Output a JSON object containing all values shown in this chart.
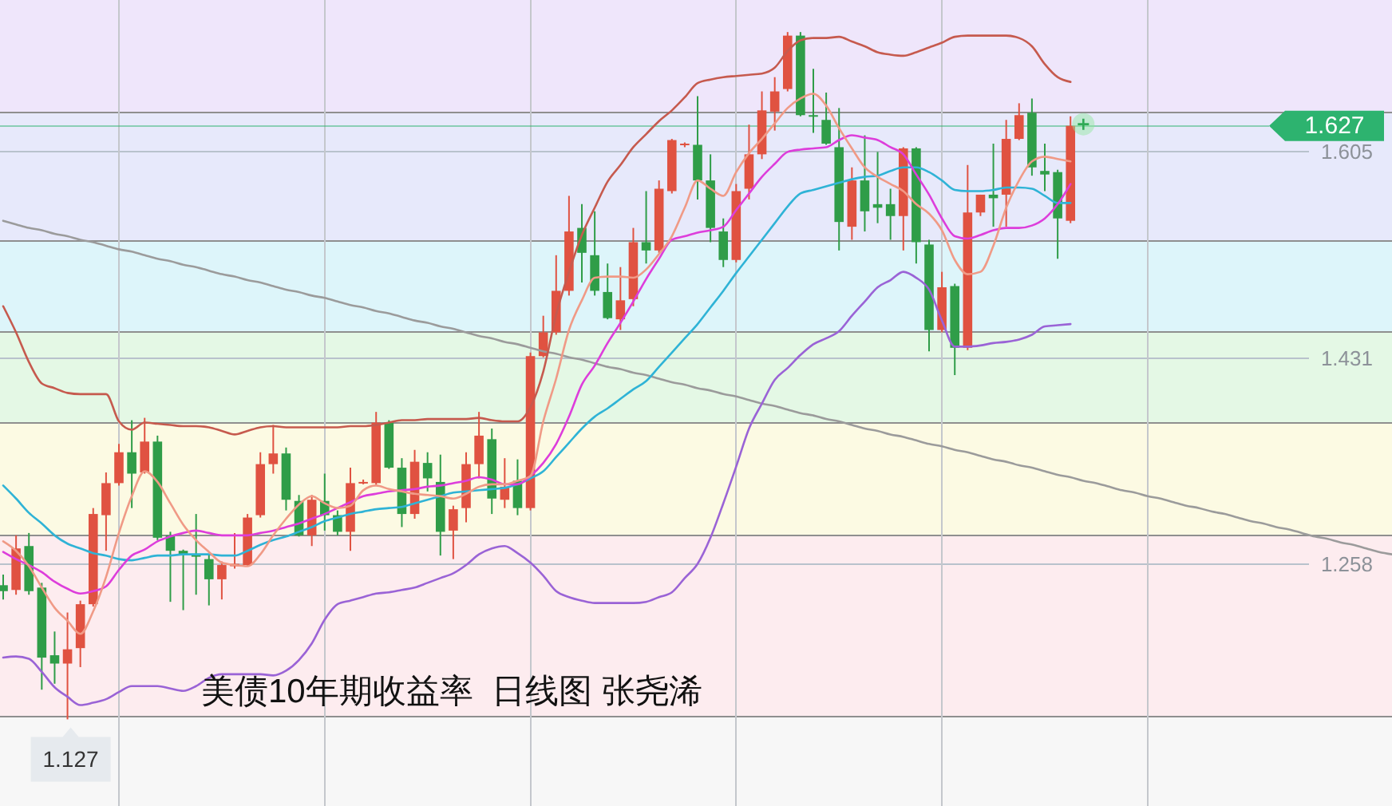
{
  "chart_data": {
    "type": "candlestick",
    "title": "美债10年期收益率  日线图 张尧浠",
    "categories": [
      null,
      null,
      null,
      null,
      null,
      null,
      null,
      null,
      null,
      null,
      null,
      null,
      null,
      null,
      null,
      null,
      null,
      null,
      null,
      null,
      null,
      null,
      null,
      null,
      null,
      null,
      null,
      null,
      null,
      null,
      null,
      null,
      null,
      null,
      null,
      null,
      null,
      null,
      null,
      null,
      null,
      null,
      null,
      null,
      null,
      null,
      null,
      null,
      null,
      null,
      null,
      null,
      null,
      null,
      null,
      null,
      null,
      null,
      null,
      null,
      null,
      null,
      null,
      null,
      null,
      null,
      null,
      null,
      null,
      null,
      null,
      null,
      null,
      null,
      null,
      null,
      null,
      null,
      null,
      null,
      null,
      null,
      null,
      null,
      null,
      null,
      null,
      null,
      null,
      null,
      null,
      null,
      null,
      null,
      null,
      null,
      null,
      null,
      null,
      null,
      null,
      null,
      null,
      null,
      null,
      null,
      null,
      null,
      null
    ],
    "ohlc": [
      [
        1.24,
        1.249,
        1.228,
        1.235
      ],
      [
        1.236,
        1.282,
        1.232,
        1.271
      ],
      [
        1.273,
        1.284,
        1.232,
        1.235
      ],
      [
        1.238,
        1.242,
        1.152,
        1.179
      ],
      [
        1.181,
        1.201,
        1.157,
        1.174
      ],
      [
        1.174,
        1.217,
        1.127,
        1.186
      ],
      [
        1.187,
        1.227,
        1.171,
        1.224
      ],
      [
        1.224,
        1.305,
        1.222,
        1.3
      ],
      [
        1.299,
        1.335,
        1.269,
        1.326
      ],
      [
        1.326,
        1.359,
        1.324,
        1.352
      ],
      [
        1.352,
        1.379,
        1.305,
        1.334
      ],
      [
        1.335,
        1.381,
        1.334,
        1.361
      ],
      [
        1.361,
        1.366,
        1.278,
        1.28
      ],
      [
        1.282,
        1.285,
        1.226,
        1.269
      ],
      [
        1.269,
        1.27,
        1.219,
        1.266
      ],
      [
        1.266,
        1.3,
        1.232,
        1.264
      ],
      [
        1.262,
        1.266,
        1.223,
        1.245
      ],
      [
        1.245,
        1.26,
        1.228,
        1.257
      ],
      [
        1.256,
        1.284,
        1.254,
        1.258
      ],
      [
        1.257,
        1.3,
        1.256,
        1.297
      ],
      [
        1.299,
        1.352,
        1.297,
        1.342
      ],
      [
        1.342,
        1.375,
        1.334,
        1.351
      ],
      [
        1.351,
        1.356,
        1.303,
        1.312
      ],
      [
        1.311,
        1.316,
        1.281,
        1.282
      ],
      [
        1.282,
        1.316,
        1.273,
        1.312
      ],
      [
        1.311,
        1.334,
        1.286,
        1.299
      ],
      [
        1.299,
        1.303,
        1.282,
        1.285
      ],
      [
        1.285,
        1.339,
        1.269,
        1.326
      ],
      [
        1.326,
        1.329,
        1.325,
        1.327
      ],
      [
        1.326,
        1.386,
        1.324,
        1.377
      ],
      [
        1.377,
        1.379,
        1.338,
        1.339
      ],
      [
        1.339,
        1.347,
        1.289,
        1.3
      ],
      [
        1.3,
        1.354,
        1.296,
        1.344
      ],
      [
        1.343,
        1.352,
        1.319,
        1.33
      ],
      [
        1.327,
        1.35,
        1.265,
        1.285
      ],
      [
        1.286,
        1.307,
        1.262,
        1.304
      ],
      [
        1.305,
        1.352,
        1.293,
        1.342
      ],
      [
        1.342,
        1.386,
        1.33,
        1.366
      ],
      [
        1.363,
        1.372,
        1.3,
        1.313
      ],
      [
        1.312,
        1.347,
        1.305,
        1.323
      ],
      [
        1.328,
        1.346,
        1.299,
        1.305
      ],
      [
        1.305,
        1.436,
        1.303,
        1.433
      ],
      [
        1.433,
        1.467,
        1.432,
        1.453
      ],
      [
        1.453,
        1.518,
        1.451,
        1.488
      ],
      [
        1.488,
        1.568,
        1.484,
        1.538
      ],
      [
        1.541,
        1.561,
        1.495,
        1.52
      ],
      [
        1.518,
        1.555,
        1.484,
        1.488
      ],
      [
        1.487,
        1.511,
        1.464,
        1.465
      ],
      [
        1.464,
        1.508,
        1.455,
        1.48
      ],
      [
        1.481,
        1.541,
        1.475,
        1.529
      ],
      [
        1.529,
        1.572,
        1.511,
        1.522
      ],
      [
        1.522,
        1.581,
        1.52,
        1.574
      ],
      [
        1.572,
        1.616,
        1.57,
        1.615
      ],
      [
        1.611,
        1.613,
        1.609,
        1.612
      ],
      [
        1.611,
        1.652,
        1.565,
        1.581
      ],
      [
        1.581,
        1.603,
        1.529,
        1.541
      ],
      [
        1.538,
        1.549,
        1.508,
        1.514
      ],
      [
        1.514,
        1.578,
        1.512,
        1.572
      ],
      [
        1.574,
        1.628,
        1.565,
        1.603
      ],
      [
        1.603,
        1.656,
        1.599,
        1.64
      ],
      [
        1.639,
        1.668,
        1.623,
        1.656
      ],
      [
        1.658,
        1.706,
        1.656,
        1.703
      ],
      [
        1.703,
        1.706,
        1.635,
        1.636
      ],
      [
        1.636,
        1.675,
        1.621,
        1.635
      ],
      [
        1.632,
        1.655,
        1.611,
        1.612
      ],
      [
        1.609,
        1.642,
        1.522,
        1.546
      ],
      [
        1.542,
        1.592,
        1.531,
        1.581
      ],
      [
        1.581,
        1.619,
        1.538,
        1.555
      ],
      [
        1.561,
        1.605,
        1.545,
        1.558
      ],
      [
        1.561,
        1.574,
        1.531,
        1.551
      ],
      [
        1.551,
        1.609,
        1.522,
        1.608
      ],
      [
        1.608,
        1.609,
        1.511,
        1.529
      ],
      [
        1.527,
        1.531,
        1.437,
        1.455
      ],
      [
        1.455,
        1.504,
        1.453,
        1.491
      ],
      [
        1.492,
        1.494,
        1.417,
        1.44
      ],
      [
        1.44,
        1.594,
        1.438,
        1.554
      ],
      [
        1.554,
        1.569,
        1.551,
        1.569
      ],
      [
        1.569,
        1.612,
        1.542,
        1.566
      ],
      [
        1.569,
        1.632,
        1.542,
        1.616
      ],
      [
        1.616,
        1.646,
        1.615,
        1.636
      ],
      [
        1.638,
        1.65,
        1.585,
        1.592
      ],
      [
        1.589,
        1.612,
        1.572,
        1.586
      ],
      [
        1.588,
        1.59,
        1.515,
        1.549
      ],
      [
        1.547,
        1.635,
        1.545,
        1.627
      ],
      null,
      null,
      null,
      null,
      null,
      null,
      null,
      null,
      null,
      null,
      null,
      null,
      null,
      null,
      null,
      null,
      null,
      null,
      null,
      null,
      null,
      null,
      null,
      null,
      null
    ],
    "colors": [
      "#2f9d48",
      "#e05241",
      "#2f9d48",
      "#2f9d48",
      "#2f9d48",
      "#e05241",
      "#e05241",
      "#e05241",
      "#e05241",
      "#e05241",
      "#2f9d48",
      "#e05241",
      "#2f9d48",
      "#2f9d48",
      "#2f9d48",
      "#2f9d48",
      "#2f9d48",
      "#e05241",
      "#e05241",
      "#e05241",
      "#e05241",
      "#e05241",
      "#2f9d48",
      "#2f9d48",
      "#e05241",
      "#2f9d48",
      "#2f9d48",
      "#e05241",
      "#e05241",
      "#e05241",
      "#2f9d48",
      "#2f9d48",
      "#e05241",
      "#2f9d48",
      "#2f9d48",
      "#e05241",
      "#e05241",
      "#e05241",
      "#2f9d48",
      "#e05241",
      "#2f9d48",
      "#e05241",
      "#e05241",
      "#e05241",
      "#e05241",
      "#2f9d48",
      "#2f9d48",
      "#2f9d48",
      "#e05241",
      "#e05241",
      "#2f9d48",
      "#e05241",
      "#e05241",
      "#e05241",
      "#2f9d48",
      "#2f9d48",
      "#2f9d48",
      "#e05241",
      "#e05241",
      "#e05241",
      "#e05241",
      "#e05241",
      "#2f9d48",
      "#2f9d48",
      "#2f9d48",
      "#2f9d48",
      "#e05241",
      "#2f9d48",
      "#2f9d48",
      "#2f9d48",
      "#e05241",
      "#2f9d48",
      "#2f9d48",
      "#e05241",
      "#2f9d48",
      "#e05241",
      "#e05241",
      "#2f9d48",
      "#e05241",
      "#e05241",
      "#2f9d48",
      "#2f9d48",
      "#2f9d48",
      "#e05241",
      null,
      null,
      null,
      null,
      null,
      null,
      null,
      null,
      null,
      null,
      null,
      null,
      null,
      null,
      null,
      null,
      null,
      null,
      null,
      null,
      null,
      null,
      null,
      null,
      null
    ],
    "series": [
      {
        "type": "line",
        "color": "#9b9b9b",
        "values": [
          1.547,
          1.544,
          1.541,
          1.539,
          1.536,
          1.534,
          1.531,
          1.529,
          1.526,
          1.523,
          1.521,
          1.518,
          1.515,
          1.513,
          1.51,
          1.508,
          1.505,
          1.502,
          1.5,
          1.497,
          1.495,
          1.492,
          1.489,
          1.487,
          1.484,
          1.482,
          1.479,
          1.476,
          1.474,
          1.471,
          1.469,
          1.466,
          1.463,
          1.461,
          1.458,
          1.456,
          1.453,
          1.45,
          1.448,
          1.445,
          1.443,
          1.44,
          1.437,
          1.435,
          1.432,
          1.43,
          1.427,
          1.424,
          1.422,
          1.419,
          1.417,
          1.414,
          1.411,
          1.409,
          1.406,
          1.404,
          1.401,
          1.399,
          1.396,
          1.393,
          1.391,
          1.388,
          1.385,
          1.383,
          1.38,
          1.378,
          1.375,
          1.372,
          1.37,
          1.367,
          1.365,
          1.362,
          1.359,
          1.357,
          1.354,
          1.352,
          1.349,
          1.346,
          1.344,
          1.341,
          1.339,
          1.336,
          1.333,
          1.331,
          1.328,
          1.326,
          1.323,
          1.32,
          1.318,
          1.315,
          1.313,
          1.31,
          1.307,
          1.305,
          1.302,
          1.3,
          1.297,
          1.294,
          1.292,
          1.289,
          1.287,
          1.284,
          1.281,
          1.279,
          1.276,
          1.274,
          1.271,
          1.268,
          1.266
        ]
      },
      {
        "type": "line",
        "color": "#c65a4e",
        "values": [
          1.475,
          1.453,
          1.428,
          1.41,
          1.406,
          1.402,
          1.401,
          1.401,
          1.401,
          1.378,
          1.371,
          1.377,
          1.376,
          1.375,
          1.374,
          1.374,
          1.373,
          1.37,
          1.367,
          1.37,
          1.373,
          1.374,
          1.373,
          1.373,
          1.373,
          1.373,
          1.373,
          1.374,
          1.374,
          1.375,
          1.377,
          1.379,
          1.379,
          1.38,
          1.38,
          1.38,
          1.38,
          1.381,
          1.379,
          1.378,
          1.378,
          1.39,
          1.42,
          1.468,
          1.504,
          1.535,
          1.558,
          1.58,
          1.594,
          1.609,
          1.62,
          1.631,
          1.64,
          1.651,
          1.663,
          1.666,
          1.668,
          1.669,
          1.67,
          1.671,
          1.676,
          1.69,
          1.699,
          1.701,
          1.701,
          1.702,
          1.698,
          1.694,
          1.689,
          1.687,
          1.686,
          1.689,
          1.693,
          1.697,
          1.702,
          1.703,
          1.703,
          1.703,
          1.703,
          1.701,
          1.694,
          1.679,
          1.668,
          1.664,
          null,
          null,
          null,
          null,
          null,
          null,
          null,
          null,
          null,
          null,
          null,
          null,
          null,
          null,
          null,
          null,
          null,
          null,
          null,
          null,
          null,
          null,
          null,
          null,
          null
        ]
      },
      {
        "type": "line",
        "color": "#9a63d6",
        "values": [
          1.179,
          1.18,
          1.178,
          1.167,
          1.154,
          1.146,
          1.139,
          1.141,
          1.144,
          1.15,
          1.155,
          1.155,
          1.155,
          1.153,
          1.151,
          1.155,
          1.162,
          1.165,
          1.165,
          1.165,
          1.165,
          1.164,
          1.168,
          1.177,
          1.191,
          1.211,
          1.224,
          1.227,
          1.23,
          1.233,
          1.234,
          1.236,
          1.238,
          1.242,
          1.246,
          1.25,
          1.257,
          1.266,
          1.271,
          1.273,
          1.267,
          1.259,
          1.248,
          1.235,
          1.23,
          1.227,
          1.225,
          1.225,
          1.225,
          1.225,
          1.226,
          1.23,
          1.234,
          1.246,
          1.258,
          1.28,
          1.309,
          1.34,
          1.372,
          1.393,
          1.413,
          1.423,
          1.434,
          1.443,
          1.448,
          1.454,
          1.467,
          1.479,
          1.491,
          1.497,
          1.504,
          1.499,
          1.489,
          1.463,
          1.441,
          1.441,
          1.442,
          1.444,
          1.445,
          1.447,
          1.451,
          1.458,
          1.459,
          1.46,
          null,
          null,
          null,
          null,
          null,
          null,
          null,
          null,
          null,
          null,
          null,
          null,
          null,
          null,
          null,
          null,
          null,
          null,
          null,
          null,
          null,
          null,
          null,
          null,
          null
        ]
      },
      {
        "type": "line",
        "color": "#2fb3d6",
        "values": [
          1.324,
          1.313,
          1.301,
          1.292,
          1.282,
          1.275,
          1.271,
          1.267,
          1.265,
          1.262,
          1.261,
          1.263,
          1.265,
          1.265,
          1.266,
          1.266,
          1.266,
          1.265,
          1.265,
          1.269,
          1.274,
          1.278,
          1.281,
          1.285,
          1.289,
          1.294,
          1.297,
          1.3,
          1.302,
          1.304,
          1.305,
          1.306,
          1.309,
          1.312,
          1.315,
          1.318,
          1.319,
          1.32,
          1.321,
          1.322,
          1.325,
          1.33,
          1.336,
          1.348,
          1.36,
          1.372,
          1.382,
          1.389,
          1.397,
          1.405,
          1.412,
          1.424,
          1.436,
          1.448,
          1.46,
          1.474,
          1.488,
          1.503,
          1.517,
          1.531,
          1.545,
          1.559,
          1.57,
          1.573,
          1.576,
          1.579,
          1.582,
          1.584,
          1.585,
          1.589,
          1.592,
          1.592,
          1.588,
          1.581,
          1.573,
          1.572,
          1.572,
          1.573,
          1.575,
          1.575,
          1.574,
          1.568,
          1.562,
          1.562,
          null,
          null,
          null,
          null,
          null,
          null,
          null,
          null,
          null,
          null,
          null,
          null,
          null,
          null,
          null,
          null,
          null,
          null,
          null,
          null,
          null,
          null,
          null,
          null,
          null
        ]
      },
      {
        "type": "line",
        "color": "#dd3ddb",
        "values": [
          1.268,
          1.262,
          1.257,
          1.251,
          1.243,
          1.237,
          1.233,
          1.235,
          1.239,
          1.253,
          1.265,
          1.27,
          1.277,
          1.281,
          1.284,
          1.286,
          1.284,
          1.282,
          1.282,
          1.282,
          1.284,
          1.286,
          1.289,
          1.292,
          1.296,
          1.3,
          1.305,
          1.31,
          1.315,
          1.317,
          1.319,
          1.32,
          1.321,
          1.323,
          1.324,
          1.326,
          1.328,
          1.331,
          1.329,
          1.325,
          1.325,
          1.332,
          1.343,
          1.359,
          1.382,
          1.409,
          1.425,
          1.444,
          1.461,
          1.479,
          1.498,
          1.515,
          1.531,
          1.534,
          1.537,
          1.539,
          1.542,
          1.556,
          1.57,
          1.584,
          1.595,
          1.605,
          1.607,
          1.608,
          1.609,
          1.615,
          1.619,
          1.617,
          1.615,
          1.609,
          1.603,
          1.586,
          1.569,
          1.549,
          1.534,
          1.532,
          1.535,
          1.539,
          1.541,
          1.541,
          1.543,
          1.549,
          1.561,
          1.578,
          null,
          null,
          null,
          null,
          null,
          null,
          null,
          null,
          null,
          null,
          null,
          null,
          null,
          null,
          null,
          null,
          null,
          null,
          null,
          null,
          null,
          null,
          null,
          null,
          null
        ]
      },
      {
        "type": "line",
        "color": "#f09a86",
        "values": [
          1.277,
          1.269,
          1.256,
          1.238,
          1.221,
          1.21,
          1.199,
          1.218,
          1.247,
          1.284,
          1.315,
          1.336,
          1.327,
          1.309,
          1.291,
          1.278,
          1.268,
          1.259,
          1.257,
          1.256,
          1.266,
          1.282,
          1.296,
          1.308,
          1.315,
          1.309,
          1.305,
          1.307,
          1.32,
          1.324,
          1.321,
          1.319,
          1.317,
          1.316,
          1.315,
          1.313,
          1.317,
          1.323,
          1.325,
          1.325,
          1.328,
          1.332,
          1.378,
          1.414,
          1.455,
          1.48,
          1.499,
          1.5,
          1.5,
          1.499,
          1.506,
          1.519,
          1.534,
          1.558,
          1.581,
          1.574,
          1.568,
          1.588,
          1.604,
          1.616,
          1.629,
          1.642,
          1.65,
          1.654,
          1.644,
          1.625,
          1.608,
          1.592,
          1.584,
          1.578,
          1.572,
          1.561,
          1.553,
          1.539,
          1.514,
          1.502,
          1.504,
          1.526,
          1.558,
          1.581,
          1.597,
          1.601,
          1.599,
          1.597,
          null,
          null,
          null,
          null,
          null,
          null,
          null,
          null,
          null,
          null,
          null,
          null,
          null,
          null,
          null,
          null,
          null,
          null,
          null,
          null,
          null,
          null,
          null,
          null,
          null
        ]
      }
    ],
    "ylim": [
      1.054,
      1.733
    ],
    "yticks": [
      1.605,
      1.431,
      1.258
    ],
    "tick_labels": "y",
    "grid": true,
    "ref_lines": [
      {
        "axis": "y",
        "value": 1.627,
        "label": "1.627",
        "color": "#2db36f"
      }
    ],
    "bands": [
      {
        "axis": "y",
        "from": 1.638,
        "to": 1.733,
        "color": "#efe6fb"
      },
      {
        "axis": "y",
        "from": 1.53,
        "to": 1.638,
        "color": "#e7e9fb"
      },
      {
        "axis": "y",
        "from": 1.453,
        "to": 1.53,
        "color": "#ddf5fa"
      },
      {
        "axis": "y",
        "from": 1.377,
        "to": 1.453,
        "color": "#e4f8e5"
      },
      {
        "axis": "y",
        "from": 1.282,
        "to": 1.377,
        "color": "#fcfae3"
      },
      {
        "axis": "y",
        "from": 1.129,
        "to": 1.282,
        "color": "#fdecef"
      }
    ],
    "annotations": [
      {
        "text": "1.127",
        "y": 1.127
      }
    ]
  }
}
